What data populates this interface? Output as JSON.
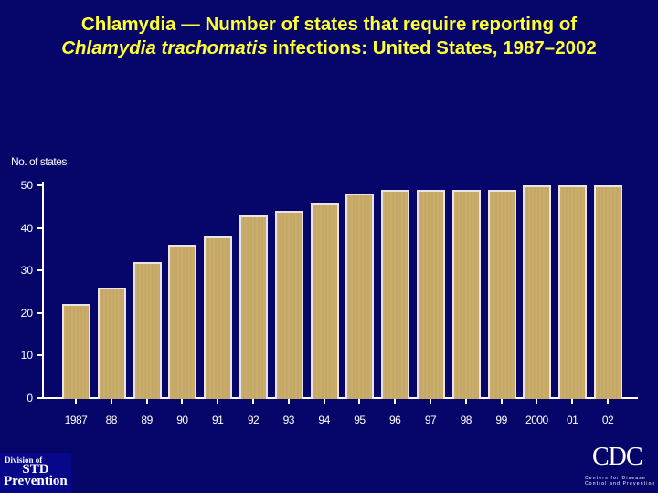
{
  "title": {
    "line1": "Chlamydia — Number of states that require reporting of",
    "line2_italic": "Chlamydia trachomatis",
    "line2_rest": " infections: United States, 1987–2002"
  },
  "logos": {
    "left": {
      "line1": "Division of",
      "line2": "STD",
      "line3": "Prevention"
    },
    "right": {
      "mark": "CDC",
      "line1": "Centers for Disease",
      "line2": "Control and Prevention"
    }
  },
  "colors": {
    "background": "#06066a",
    "title": "#ffff33",
    "bar": "#c9ad6b",
    "bar_border": "#e8e4ea",
    "axis": "#ffffff"
  },
  "chart_data": {
    "type": "bar",
    "title": "Chlamydia — Number of states that require reporting of Chlamydia trachomatis infections: United States, 1987–2002",
    "xlabel": "",
    "ylabel": "No. of states",
    "categories": [
      "1987",
      "88",
      "89",
      "90",
      "91",
      "92",
      "93",
      "94",
      "95",
      "96",
      "97",
      "98",
      "99",
      "2000",
      "01",
      "02"
    ],
    "values": [
      22,
      26,
      32,
      36,
      38,
      43,
      44,
      46,
      48,
      49,
      49,
      49,
      49,
      50,
      50,
      50
    ],
    "ylim": [
      0,
      50
    ],
    "yticks": [
      0,
      10,
      20,
      30,
      40,
      50
    ],
    "grid": false,
    "legend": null
  }
}
